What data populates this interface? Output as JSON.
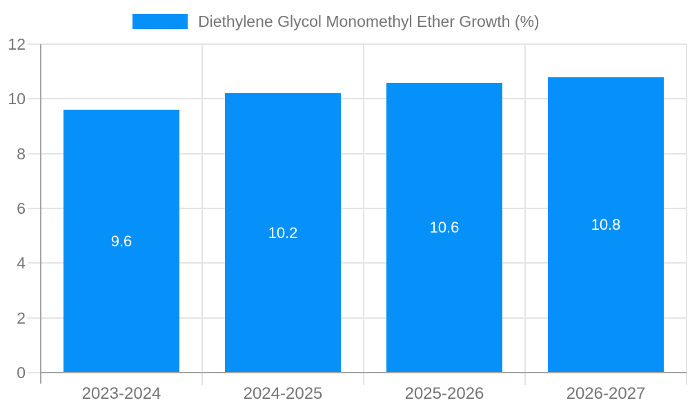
{
  "legend": {
    "label": "Diethylene Glycol Monomethyl Ether Growth (%)"
  },
  "chart_data": {
    "type": "bar",
    "title": "Diethylene Glycol Monomethyl Ether Growth (%)",
    "categories": [
      "2023-2024",
      "2024-2025",
      "2025-2026",
      "2026-2027"
    ],
    "values": [
      9.6,
      10.2,
      10.6,
      10.8
    ],
    "value_labels": [
      "9.6",
      "10.2",
      "10.6",
      "10.8"
    ],
    "y_ticks": [
      0,
      2,
      4,
      6,
      8,
      10,
      12
    ],
    "ylim": [
      0,
      12
    ],
    "grid": true,
    "legend_position": "top-center",
    "bar_color": "#0691fa",
    "value_label_color": "#ffffff"
  },
  "colors": {
    "grid": "#e4e4e6",
    "axis": "#a4a4a4",
    "tick_text": "#757575",
    "background": "#ffffff"
  }
}
